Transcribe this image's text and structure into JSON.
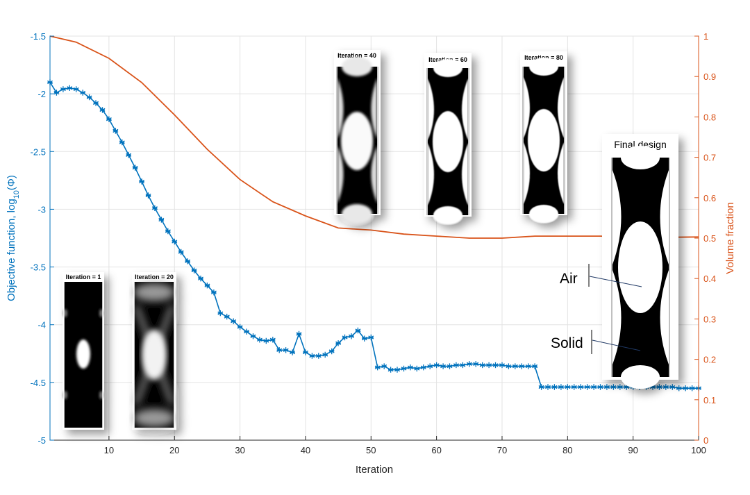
{
  "chart_data": {
    "type": "line",
    "title": "",
    "xlabel": "Iteration",
    "ylabel_left_prefix": "Objective function, log",
    "ylabel_left_sub": "10",
    "ylabel_left_suffix": "(Φ)",
    "ylabel_right": "Volume fraction",
    "xlim": [
      1,
      100
    ],
    "ylim_left": [
      -5,
      -1.5
    ],
    "ylim_right": [
      0,
      1
    ],
    "grid": true,
    "x_ticks": [
      10,
      20,
      30,
      40,
      50,
      60,
      70,
      80,
      90,
      100
    ],
    "y_left_ticks": [
      -5,
      -4.5,
      -4,
      -3.5,
      -3,
      -2.5,
      -2,
      -1.5
    ],
    "y_right_ticks": [
      0,
      0.1,
      0.2,
      0.3,
      0.4,
      0.5,
      0.6,
      0.7,
      0.8,
      0.9,
      1
    ],
    "series": [
      {
        "axis": "left",
        "color": "#0072BD",
        "marker": "asterisk",
        "x": [
          1,
          2,
          3,
          4,
          5,
          6,
          7,
          8,
          9,
          10,
          11,
          12,
          13,
          14,
          15,
          16,
          17,
          18,
          19,
          20,
          21,
          22,
          23,
          24,
          25,
          26,
          27,
          28,
          29,
          30,
          31,
          32,
          33,
          34,
          35,
          36,
          37,
          38,
          39,
          40,
          41,
          42,
          43,
          44,
          45,
          46,
          47,
          48,
          49,
          50,
          51,
          52,
          53,
          54,
          55,
          56,
          57,
          58,
          59,
          60,
          61,
          62,
          63,
          64,
          65,
          66,
          67,
          68,
          69,
          70,
          71,
          72,
          73,
          74,
          75,
          76,
          77,
          78,
          79,
          80,
          81,
          82,
          83,
          84,
          85,
          86,
          87,
          88,
          89,
          90,
          91,
          92,
          93,
          94,
          95,
          96,
          97,
          98,
          99,
          100
        ],
        "y": [
          -1.9,
          -1.99,
          -1.96,
          -1.95,
          -1.96,
          -1.99,
          -2.03,
          -2.08,
          -2.14,
          -2.22,
          -2.32,
          -2.42,
          -2.53,
          -2.64,
          -2.76,
          -2.88,
          -2.99,
          -3.09,
          -3.19,
          -3.28,
          -3.37,
          -3.45,
          -3.53,
          -3.6,
          -3.66,
          -3.72,
          -3.9,
          -3.93,
          -3.97,
          -4.02,
          -4.06,
          -4.1,
          -4.13,
          -4.14,
          -4.13,
          -4.22,
          -4.22,
          -4.24,
          -4.08,
          -4.24,
          -4.27,
          -4.27,
          -4.26,
          -4.23,
          -4.16,
          -4.11,
          -4.1,
          -4.05,
          -4.12,
          -4.11,
          -4.37,
          -4.36,
          -4.39,
          -4.39,
          -4.38,
          -4.37,
          -4.38,
          -4.37,
          -4.36,
          -4.35,
          -4.36,
          -4.36,
          -4.35,
          -4.35,
          -4.34,
          -4.34,
          -4.35,
          -4.35,
          -4.35,
          -4.35,
          -4.36,
          -4.36,
          -4.36,
          -4.36,
          -4.36,
          -4.54,
          -4.54,
          -4.54,
          -4.54,
          -4.54,
          -4.54,
          -4.54,
          -4.54,
          -4.54,
          -4.54,
          -4.54,
          -4.54,
          -4.54,
          -4.54,
          -4.54,
          -4.54,
          -4.54,
          -4.54,
          -4.54,
          -4.54,
          -4.54,
          -4.55,
          -4.55,
          -4.55,
          -4.55
        ]
      },
      {
        "axis": "right",
        "color": "#D95319",
        "marker": "none",
        "x": [
          1,
          5,
          10,
          15,
          20,
          25,
          30,
          35,
          40,
          45,
          50,
          55,
          60,
          65,
          70,
          75,
          80,
          85,
          90,
          95,
          100
        ],
        "y": [
          1.0,
          0.985,
          0.945,
          0.885,
          0.805,
          0.72,
          0.645,
          0.59,
          0.555,
          0.525,
          0.52,
          0.51,
          0.505,
          0.5,
          0.5,
          0.505,
          0.505,
          0.505,
          0.503,
          0.502,
          0.503
        ]
      }
    ],
    "insets": [
      {
        "label": "Iteration = 1"
      },
      {
        "label": "Iteration = 20"
      },
      {
        "label": "Iteration = 40"
      },
      {
        "label": "Iteration = 60"
      },
      {
        "label": "Iteration = 80"
      },
      {
        "label": "Final design"
      }
    ],
    "annotations": [
      {
        "text": "Air"
      },
      {
        "text": "Solid"
      }
    ]
  }
}
